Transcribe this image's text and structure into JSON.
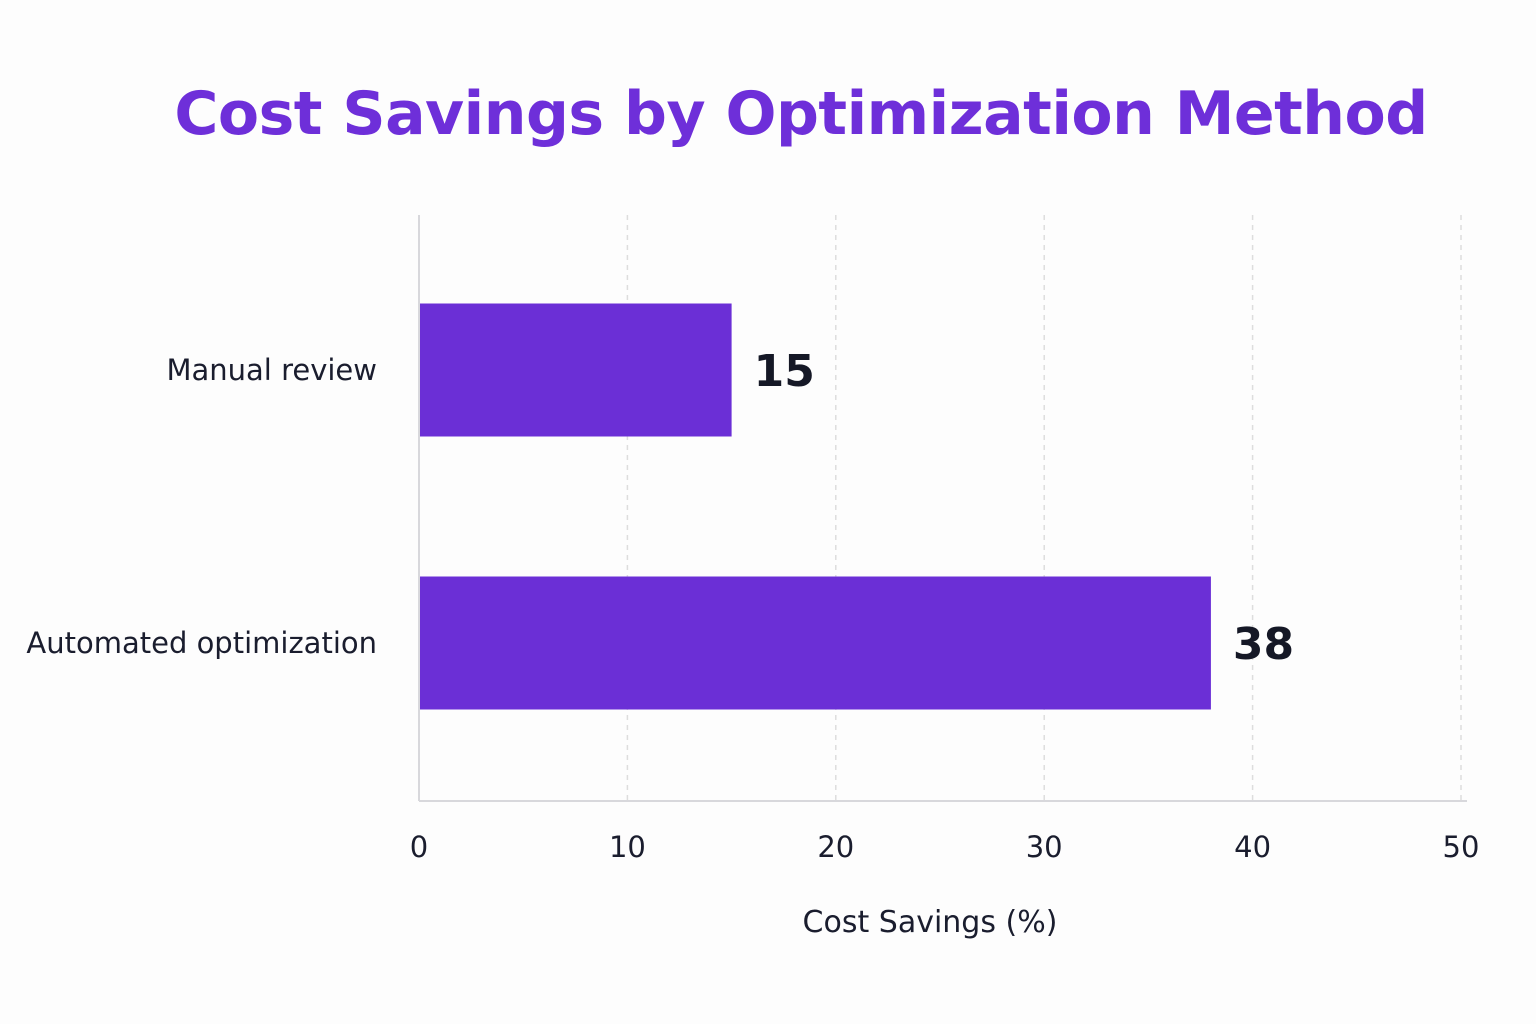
{
  "chart_data": {
    "type": "bar",
    "orientation": "horizontal",
    "title": "Cost Savings by Optimization Method",
    "categories": [
      "Manual review",
      "Automated optimization"
    ],
    "values": [
      15,
      38
    ],
    "xlabel": "Cost Savings (%)",
    "ylabel": "",
    "xlim": [
      0,
      50
    ],
    "xticks": [
      0,
      10,
      20,
      30,
      40,
      50
    ],
    "grid": "vertical dashed",
    "data_labels": true,
    "colors": {
      "bar": "#6b2fd6",
      "title": "#6e2fd9",
      "text": "#1a1d2e",
      "grid": "#dddddd",
      "axis": "#d8d8dc"
    }
  }
}
